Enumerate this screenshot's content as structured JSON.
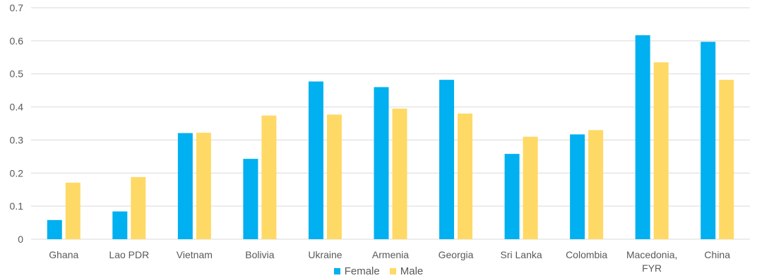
{
  "chart_data": {
    "type": "bar",
    "title": "",
    "xlabel": "",
    "ylabel": "",
    "ylim": [
      0,
      0.7
    ],
    "yticks": [
      0,
      0.1,
      0.2,
      0.3,
      0.4,
      0.5,
      0.6,
      0.7
    ],
    "ytick_labels": [
      "0",
      "0.1",
      "0.2",
      "0.3",
      "0.4",
      "0.5",
      "0.6",
      "0.7"
    ],
    "grid": true,
    "legend_position": "bottom",
    "categories": [
      "Ghana",
      "Lao PDR",
      "Vietnam",
      "Bolivia",
      "Ukraine",
      "Armenia",
      "Georgia",
      "Sri Lanka",
      "Colombia",
      "Macedonia, FYR",
      "China"
    ],
    "category_lines": [
      [
        "Ghana"
      ],
      [
        "Lao PDR"
      ],
      [
        "Vietnam"
      ],
      [
        "Bolivia"
      ],
      [
        "Ukraine"
      ],
      [
        "Armenia"
      ],
      [
        "Georgia"
      ],
      [
        "Sri Lanka"
      ],
      [
        "Colombia"
      ],
      [
        "Macedonia,",
        "FYR"
      ],
      [
        "China"
      ]
    ],
    "series": [
      {
        "name": "Female",
        "color": "#00b0f0",
        "values": [
          0.058,
          0.084,
          0.321,
          0.243,
          0.477,
          0.46,
          0.482,
          0.258,
          0.317,
          0.617,
          0.597
        ]
      },
      {
        "name": "Male",
        "color": "#ffd966",
        "values": [
          0.171,
          0.188,
          0.322,
          0.374,
          0.377,
          0.395,
          0.38,
          0.31,
          0.33,
          0.535,
          0.482
        ]
      }
    ]
  }
}
